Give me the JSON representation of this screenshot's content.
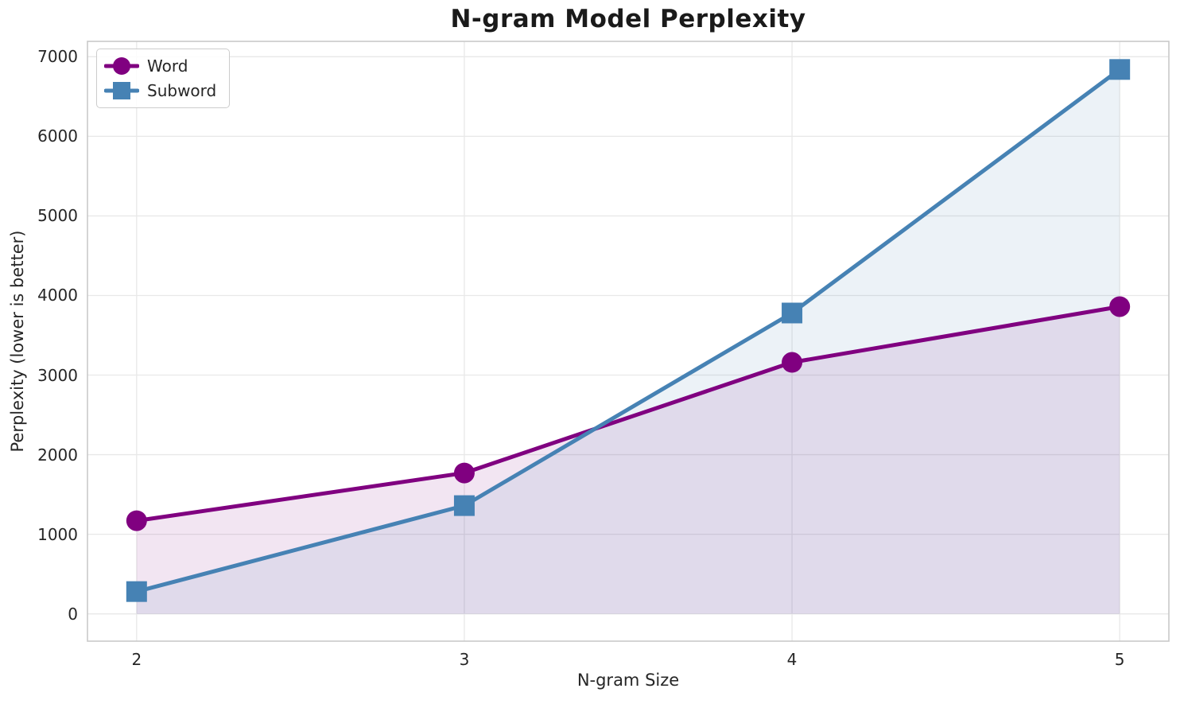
{
  "chart_data": {
    "type": "line",
    "title": "N-gram Model Perplexity",
    "xlabel": "N-gram Size",
    "ylabel": "Perplexity (lower is better)",
    "x": [
      2,
      3,
      4,
      5
    ],
    "series": [
      {
        "name": "Word",
        "values": [
          1170,
          1770,
          3160,
          3860
        ],
        "color": "#800080",
        "marker": "circle"
      },
      {
        "name": "Subword",
        "values": [
          280,
          1360,
          3780,
          6840
        ],
        "color": "#4682B4",
        "marker": "square"
      }
    ],
    "xticks": [
      2,
      3,
      4,
      5
    ],
    "yticks": [
      0,
      1000,
      2000,
      3000,
      4000,
      5000,
      6000,
      7000
    ],
    "xlim": [
      1.85,
      5.15
    ],
    "ylim": [
      -343,
      7193
    ],
    "grid": true,
    "fill_to_zero": true,
    "fill_opacity": 0.1,
    "legend_position": "upper-left",
    "grid_color": "#e8e8e8",
    "spine_color": "#c9c9c9",
    "text_color": "#262626",
    "background": "#ffffff"
  }
}
